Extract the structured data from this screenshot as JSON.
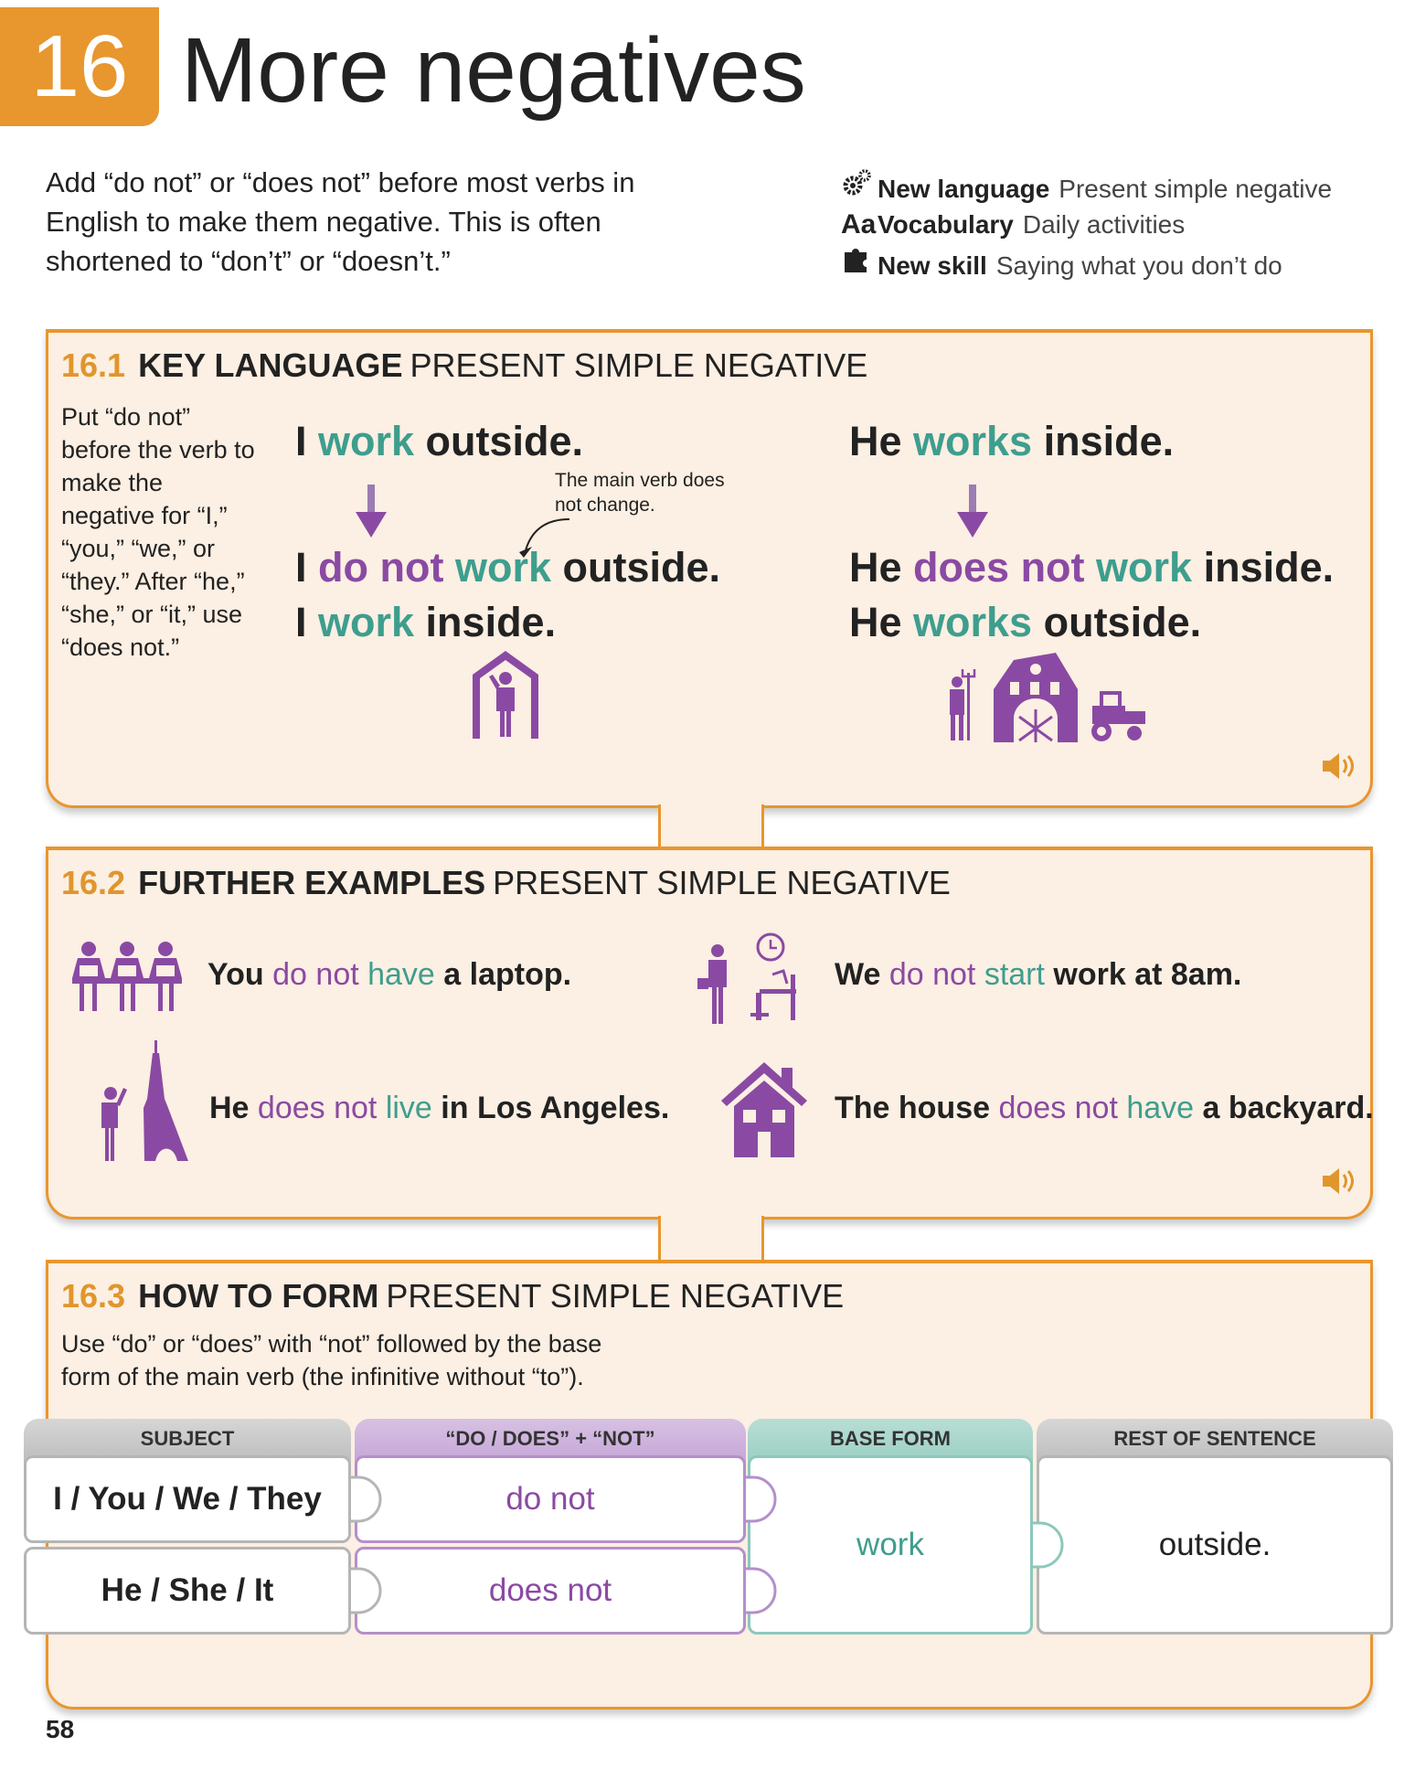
{
  "header": {
    "chapter_number": "16",
    "title": "More negatives",
    "intro": "Add “do not” or “does not” before most verbs in English to make them negative. This is often shortened to “don’t” or “doesn’t.”"
  },
  "meta": [
    {
      "icon": "gears-icon",
      "label": "New language",
      "value": "Present simple negative"
    },
    {
      "icon": "aa-icon",
      "glyph": "Aa",
      "label": "Vocabulary",
      "value": "Daily activities"
    },
    {
      "icon": "puzzle-icon",
      "label": "New skill",
      "value": "Saying what you don’t do"
    }
  ],
  "colors": {
    "orange": "#e8962e",
    "purple": "#8a4aa3",
    "teal": "#3e9e8e",
    "panel": "#fcefe3"
  },
  "s1": {
    "num": "16.1",
    "bold": "KEY LANGUAGE",
    "rest": "PRESENT SIMPLE NEGATIVE",
    "note": "Put “do not” before the verb to make the negative for “I,” “you,” “we,” or “they.” After “he,” “she,” or “it,” use “does not.”",
    "callout": "The main verb does not change.",
    "left": {
      "s1": {
        "a": "I ",
        "v": "work",
        "b": " outside."
      },
      "s2": {
        "a": "I ",
        "neg": "do not",
        "v": " work",
        "b": " outside."
      },
      "s3": {
        "a": "I ",
        "v": "work",
        "b": " inside."
      }
    },
    "right": {
      "s1": {
        "a": "He ",
        "v": "works",
        "b": " inside."
      },
      "s2": {
        "a": "He ",
        "neg": "does not",
        "v": " work",
        "b": " inside."
      },
      "s3": {
        "a": "He ",
        "v": "works",
        "b": " outside."
      }
    }
  },
  "s2": {
    "num": "16.2",
    "bold": "FURTHER EXAMPLES",
    "rest": "PRESENT SIMPLE NEGATIVE",
    "examples": [
      {
        "a": "You ",
        "neg": "do not",
        "v": " have",
        "b": " a laptop."
      },
      {
        "a": "We ",
        "neg": "do not",
        "v": " start",
        "b": " work at 8am."
      },
      {
        "a": "He ",
        "neg": "does not",
        "v": " live",
        "b": " in Los Angeles."
      },
      {
        "a": "The house ",
        "neg": "does not",
        "v": " have",
        "b": " a backyard."
      }
    ]
  },
  "s3": {
    "num": "16.3",
    "bold": "HOW TO FORM",
    "rest": "PRESENT SIMPLE NEGATIVE",
    "note": "Use “do” or “does” with “not” followed by the base form of the main verb (the infinitive without “to”).",
    "columns": [
      "SUBJECT",
      "“DO / DOES” + “NOT”",
      "BASE FORM",
      "REST OF SENTENCE"
    ],
    "rows": [
      {
        "subject": "I / You / We / They",
        "aux": "do not"
      },
      {
        "subject": "He / She / It",
        "aux": "does not"
      }
    ],
    "base": "work",
    "rest_text": "outside."
  },
  "page_number": "58"
}
